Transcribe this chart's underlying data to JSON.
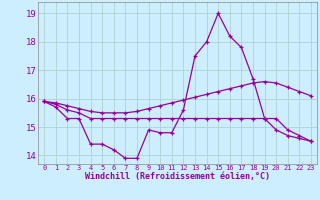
{
  "xlabel": "Windchill (Refroidissement éolien,°C)",
  "bg_color": "#cceeff",
  "line_color": "#990099",
  "grid_color": "#aacccc",
  "x_hours": [
    0,
    1,
    2,
    3,
    4,
    5,
    6,
    7,
    8,
    9,
    10,
    11,
    12,
    13,
    14,
    15,
    16,
    17,
    18,
    19,
    20,
    21,
    22,
    23
  ],
  "line1": [
    15.9,
    15.7,
    15.3,
    15.3,
    14.4,
    14.4,
    14.2,
    13.9,
    13.9,
    14.9,
    14.8,
    14.8,
    15.6,
    17.5,
    18.0,
    19.0,
    18.2,
    17.8,
    16.7,
    15.3,
    14.9,
    14.7,
    14.6,
    14.5
  ],
  "line2": [
    15.9,
    15.8,
    15.6,
    15.5,
    15.3,
    15.3,
    15.3,
    15.3,
    15.3,
    15.3,
    15.3,
    15.3,
    15.3,
    15.3,
    15.3,
    15.3,
    15.3,
    15.3,
    15.3,
    15.3,
    15.3,
    14.9,
    14.7,
    14.5
  ],
  "line3": [
    15.9,
    15.85,
    15.75,
    15.65,
    15.55,
    15.5,
    15.5,
    15.5,
    15.55,
    15.65,
    15.75,
    15.85,
    15.95,
    16.05,
    16.15,
    16.25,
    16.35,
    16.45,
    16.55,
    16.6,
    16.55,
    16.4,
    16.25,
    16.1
  ],
  "ylim": [
    13.7,
    19.4
  ],
  "yticks": [
    14,
    15,
    16,
    17,
    18,
    19
  ]
}
